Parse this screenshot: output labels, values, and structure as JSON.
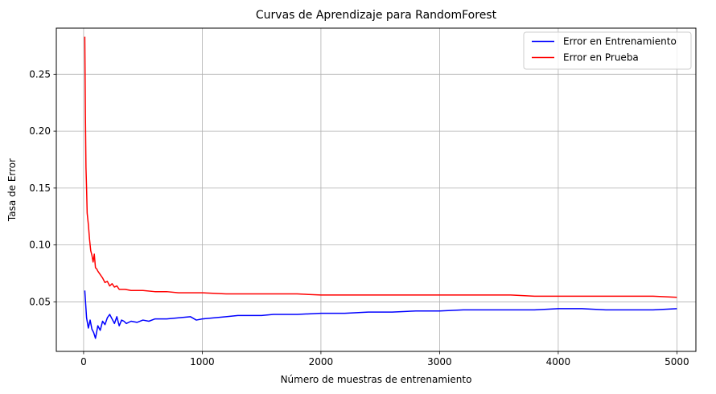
{
  "chart_data": {
    "type": "line",
    "title": "Curvas de Aprendizaje para RandomForest",
    "xlabel": "Número de muestras de entrenamiento",
    "ylabel": "Tasa de Error",
    "xlim": [
      -230,
      5160
    ],
    "ylim": [
      0.0065,
      0.2905
    ],
    "xticks": [
      0,
      1000,
      2000,
      3000,
      4000,
      5000
    ],
    "xtick_labels": [
      "0",
      "1000",
      "2000",
      "3000",
      "4000",
      "5000"
    ],
    "yticks": [
      0.05,
      0.1,
      0.15,
      0.2,
      0.25
    ],
    "ytick_labels": [
      "0.05",
      "0.10",
      "0.15",
      "0.20",
      "0.25"
    ],
    "grid": true,
    "legend_position": "top-right",
    "series": [
      {
        "name": "Error en Entrenamiento",
        "color": "#0000ff",
        "x": [
          10,
          25,
          40,
          55,
          70,
          85,
          100,
          120,
          140,
          160,
          180,
          200,
          220,
          240,
          260,
          280,
          300,
          320,
          340,
          360,
          400,
          450,
          500,
          550,
          600,
          700,
          800,
          900,
          950,
          1000,
          1100,
          1200,
          1300,
          1400,
          1500,
          1600,
          1800,
          2000,
          2200,
          2400,
          2600,
          2800,
          3000,
          3200,
          3400,
          3500,
          3600,
          3800,
          4000,
          4200,
          4400,
          4600,
          4800,
          5000
        ],
        "y": [
          0.06,
          0.036,
          0.027,
          0.034,
          0.026,
          0.023,
          0.018,
          0.029,
          0.025,
          0.033,
          0.03,
          0.036,
          0.039,
          0.035,
          0.031,
          0.037,
          0.029,
          0.034,
          0.033,
          0.031,
          0.033,
          0.032,
          0.034,
          0.033,
          0.035,
          0.035,
          0.036,
          0.037,
          0.034,
          0.035,
          0.036,
          0.037,
          0.038,
          0.038,
          0.038,
          0.039,
          0.039,
          0.04,
          0.04,
          0.041,
          0.041,
          0.042,
          0.042,
          0.043,
          0.043,
          0.043,
          0.043,
          0.043,
          0.044,
          0.044,
          0.043,
          0.043,
          0.043,
          0.044
        ]
      },
      {
        "name": "Error en Prueba",
        "color": "#ff0000",
        "x": [
          10,
          15,
          20,
          25,
          30,
          40,
          50,
          60,
          70,
          80,
          90,
          100,
          110,
          120,
          140,
          160,
          180,
          200,
          220,
          240,
          260,
          280,
          300,
          350,
          400,
          450,
          500,
          600,
          700,
          800,
          900,
          1000,
          1200,
          1400,
          1600,
          1800,
          2000,
          2200,
          2400,
          2600,
          2800,
          3000,
          3200,
          3400,
          3600,
          3800,
          4000,
          4200,
          4400,
          4600,
          4800,
          5000
        ],
        "y": [
          0.283,
          0.215,
          0.168,
          0.15,
          0.128,
          0.118,
          0.105,
          0.095,
          0.091,
          0.085,
          0.092,
          0.08,
          0.079,
          0.077,
          0.074,
          0.071,
          0.067,
          0.068,
          0.064,
          0.066,
          0.063,
          0.064,
          0.061,
          0.061,
          0.06,
          0.06,
          0.06,
          0.059,
          0.059,
          0.058,
          0.058,
          0.058,
          0.057,
          0.057,
          0.057,
          0.057,
          0.056,
          0.056,
          0.056,
          0.056,
          0.056,
          0.056,
          0.056,
          0.056,
          0.056,
          0.055,
          0.055,
          0.055,
          0.055,
          0.055,
          0.055,
          0.054
        ]
      }
    ]
  }
}
